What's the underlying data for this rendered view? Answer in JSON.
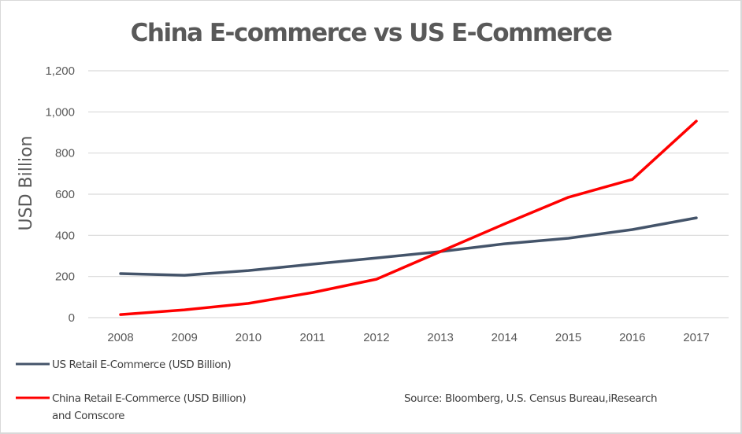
{
  "chart_data": {
    "type": "line",
    "title": "China E-commerce vs US E-Commerce",
    "xlabel": "",
    "ylabel": "USD Billion",
    "x": [
      2008,
      2009,
      2010,
      2011,
      2012,
      2013,
      2014,
      2015,
      2016,
      2017
    ],
    "x_tick_labels": [
      "2008",
      "2009",
      "2010",
      "2011",
      "2012",
      "2013",
      "2014",
      "2015",
      "2016",
      "2017"
    ],
    "ylim": [
      0,
      1200
    ],
    "y_ticks": [
      0,
      200,
      400,
      600,
      800,
      1000,
      1200
    ],
    "y_tick_labels": [
      "0",
      "200",
      "400",
      "600",
      "800",
      "1,000",
      "1,200"
    ],
    "grid": true,
    "legend_placement": "bottom-left",
    "series": [
      {
        "name": "US Retail E-Commerce (USD Billion)",
        "color": "#44546a",
        "values": [
          214,
          206,
          229,
          260,
          290,
          321,
          359,
          386,
          428,
          485
        ]
      },
      {
        "name": "China Retail E-Commerce (USD Billion) and Comscore",
        "name_line1": "China Retail E-Commerce (USD Billion)",
        "name_line2": "and Comscore",
        "color": "#ff0000",
        "values": [
          15,
          38,
          69,
          122,
          187,
          321,
          455,
          585,
          672,
          955
        ]
      }
    ],
    "annotations": {
      "source": "Source: Bloomberg, U.S. Census Bureau,iResearch"
    }
  }
}
